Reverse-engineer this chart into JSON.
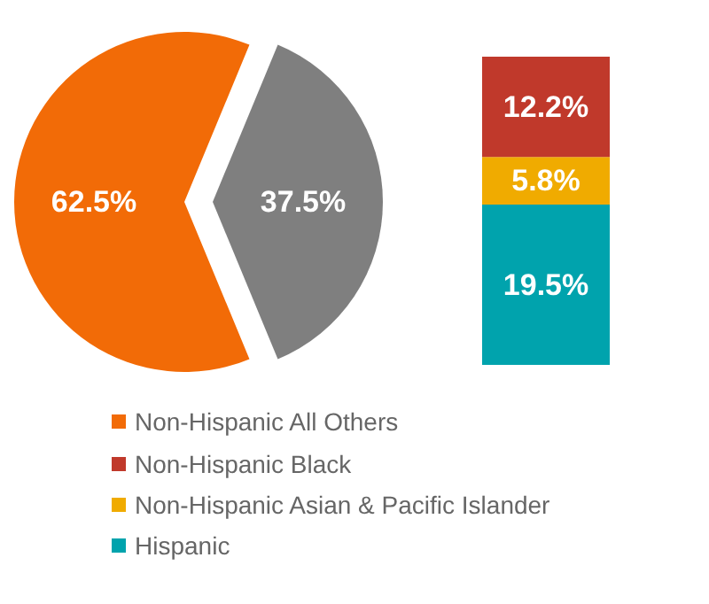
{
  "chart_data": [
    {
      "type": "pie",
      "categories": [
        "Non-Hispanic All Others",
        null
      ],
      "values": [
        62.5,
        37.5
      ],
      "colors": [
        "#f26b07",
        "#7f7f7f"
      ],
      "value_labels": [
        "62.5%",
        "37.5%"
      ],
      "legend": "bottom"
    },
    {
      "type": "bar",
      "stacked": true,
      "categories": [
        null
      ],
      "series": [
        {
          "name": "Hispanic",
          "color": "#00a3ad",
          "values": [
            19.5
          ],
          "value_labels": [
            "19.5%"
          ]
        },
        {
          "name": "Non-Hispanic Asian & Pacific Islander",
          "color": "#f0ab00",
          "values": [
            5.8
          ],
          "value_labels": [
            "5.8%"
          ]
        },
        {
          "name": "Non-Hispanic Black",
          "color": "#c0392b",
          "values": [
            12.2
          ],
          "value_labels": [
            "12.2%"
          ]
        }
      ],
      "legend": "bottom"
    }
  ]
}
